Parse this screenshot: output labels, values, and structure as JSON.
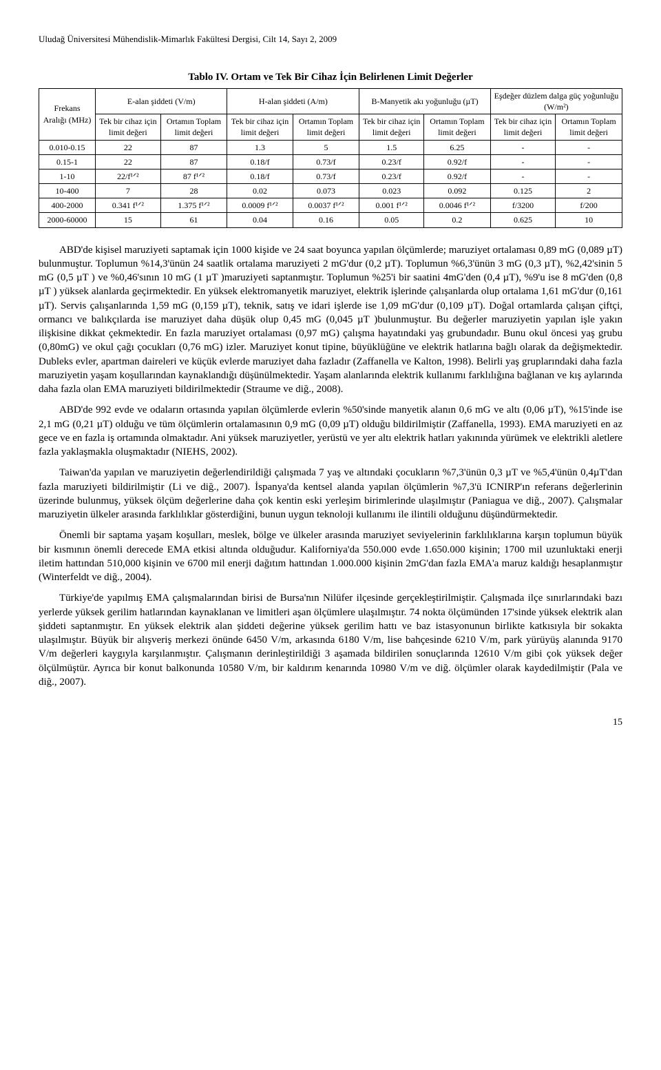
{
  "running_head": "Uludağ Üniversitesi Mühendislik-Mimarlık Fakültesi Dergisi, Cilt 14, Sayı 2, 2009",
  "table": {
    "caption": "Tablo IV. Ortam ve Tek Bir Cihaz İçin Belirlenen Limit Değerler",
    "fontsize": 12,
    "header_bg": "#ffffff",
    "border_color": "#000000",
    "group_header": {
      "col0": "Frekans Aralığı (MHz)",
      "g1": "E-alan şiddeti (V/m)",
      "g2": "H-alan şiddeti (A/m)",
      "g3": "B-Manyetik akı yoğunluğu (µT)",
      "g4": "Eşdeğer düzlem dalga güç yoğunluğu (W/m²)"
    },
    "sub_header_a": "Tek bir cihaz için limit değeri",
    "sub_header_b": "Ortamın Toplam limit değeri",
    "rows": [
      [
        "0.010-0.15",
        "22",
        "87",
        "1.3",
        "5",
        "1.5",
        "6.25",
        "-",
        "-"
      ],
      [
        "0.15-1",
        "22",
        "87",
        "0.18/f",
        "0.73/f",
        "0.23/f",
        "0.92/f",
        "-",
        "-"
      ],
      [
        "1-10",
        "22/f¹ᐟ²",
        "87 f¹ᐟ²",
        "0.18/f",
        "0.73/f",
        "0.23/f",
        "0.92/f",
        "-",
        "-"
      ],
      [
        "10-400",
        "7",
        "28",
        "0.02",
        "0.073",
        "0.023",
        "0.092",
        "0.125",
        "2"
      ],
      [
        "400-2000",
        "0.341 f¹ᐟ²",
        "1.375 f¹ᐟ²",
        "0.0009 f¹ᐟ²",
        "0.0037 f¹ᐟ²",
        "0.001 f¹ᐟ²",
        "0.0046 f¹ᐟ²",
        "f/3200",
        "f/200"
      ],
      [
        "2000-60000",
        "15",
        "61",
        "0.04",
        "0.16",
        "0.05",
        "0.2",
        "0.625",
        "10"
      ]
    ]
  },
  "paragraphs": {
    "p1": "ABD'de kişisel maruziyeti saptamak için 1000 kişide ve 24 saat boyunca yapılan ölçümlerde; maruziyet ortalaması 0,89 mG (0,089 µT) bulunmuştur. Toplumun %14,3'ünün 24 saatlik ortalama maruziyeti 2 mG'dur (0,2 µT). Toplumun %6,3'ünün 3 mG (0,3 µT), %2,42'sinin 5 mG (0,5 µT ) ve %0,46'sının 10 mG (1 µT )maruziyeti saptanmıştır. Toplumun %25'i bir saatini 4mG'den (0,4 µT), %9'u ise 8 mG'den (0,8 µT ) yüksek alanlarda geçirmektedir. En yüksek elektromanyetik maruziyet, elektrik işlerinde çalışanlarda olup ortalama 1,61 mG'dur (0,161 µT). Servis çalışanlarında 1,59 mG (0,159 µT), teknik, satış ve idari işlerde ise 1,09 mG'dur (0,109 µT). Doğal ortamlarda çalışan çiftçi, ormancı ve balıkçılarda ise maruziyet daha düşük olup 0,45 mG (0,045 µT )bulunmuştur. Bu değerler maruziyetin yapılan işle yakın ilişkisine dikkat çekmektedir. En fazla maruziyet ortalaması (0,97 mG) çalışma hayatındaki yaş grubundadır. Bunu okul öncesi yaş grubu (0,80mG) ve okul çağı çocukları (0,76 mG) izler. Maruziyet konut tipine, büyüklüğüne ve elektrik hatlarına bağlı olarak da değişmektedir. Dubleks evler, apartman daireleri ve küçük evlerde maruziyet daha fazladır (Zaffanella ve Kalton, 1998). Belirli yaş gruplarındaki daha fazla maruziyetin yaşam koşullarından kaynaklandığı düşünülmektedir. Yaşam alanlarında elektrik kullanımı farklılığına bağlanan ve kış aylarında daha fazla olan EMA maruziyeti bildirilmektedir (Straume ve diğ., 2008).",
    "p2": "ABD'de 992 evde ve odaların ortasında yapılan ölçümlerde evlerin %50'sinde manyetik alanın 0,6 mG ve altı (0,06 µT), %15'inde ise 2,1 mG (0,21 µT) olduğu ve tüm ölçümlerin ortalamasının 0,9 mG (0,09 µT) olduğu bildirilmiştir (Zaffanella, 1993). EMA maruziyeti en az gece ve en fazla iş ortamında olmaktadır. Ani yüksek maruziyetler, yerüstü ve yer altı elektrik hatları yakınında yürümek ve elektrikli aletlere fazla yaklaşmakla oluşmaktadır (NIEHS, 2002).",
    "p3": "Taiwan'da yapılan ve maruziyetin değerlendirildiği çalışmada 7 yaş ve altındaki çocukların %7,3'ünün 0,3 µT ve %5,4'ünün 0,4µT'dan fazla maruziyeti bildirilmiştir (Li ve diğ., 2007). İspanya'da kentsel alanda yapılan ölçümlerin %7,3'ü ICNIRP'ın referans değerlerinin üzerinde bulunmuş, yüksek ölçüm değerlerine daha çok kentin eski yerleşim birimlerinde ulaşılmıştır (Paniagua ve diğ., 2007). Çalışmalar maruziyetin ülkeler arasında farklılıklar gösterdiğini, bunun uygun teknoloji kullanımı ile ilintili olduğunu düşündürmektedir.",
    "p4": "Önemli bir saptama yaşam koşulları, meslek, bölge ve ülkeler arasında maruziyet seviyelerinin farklılıklarına karşın toplumun büyük bir kısmının önemli derecede EMA etkisi altında olduğudur. Kaliforniya'da 550.000 evde 1.650.000 kişinin; 1700 mil uzunluktaki enerji iletim hattından 510,000 kişinin ve 6700 mil enerji dağıtım hattından 1.000.000 kişinin 2mG'dan fazla EMA'a maruz kaldığı hesaplanmıştır (Winterfeldt ve diğ., 2004).",
    "p5": "Türkiye'de yapılmış EMA çalışmalarından birisi de Bursa'nın Nilüfer ilçesinde gerçekleştirilmiştir. Çalışmada ilçe sınırlarındaki bazı yerlerde yüksek gerilim hatlarından kaynaklanan ve limitleri aşan ölçümlere ulaşılmıştır. 74 nokta ölçümünden 17'sinde yüksek elektrik alan şiddeti saptanmıştır. En yüksek elektrik alan şiddeti değerine yüksek gerilim hattı ve baz istasyonunun birlikte katkısıyla bir sokakta ulaşılmıştır. Büyük bir alışveriş merkezi önünde 6450 V/m, arkasında 6180 V/m, lise bahçesinde 6210 V/m, park yürüyüş alanında 9170 V/m değerleri kaygıyla karşılanmıştır. Çalışmanın derinleştirildiği 3 aşamada bildirilen sonuçlarında 12610 V/m gibi çok yüksek değer ölçülmüştür. Ayrıca bir konut balkonunda 10580 V/m, bir kaldırım kenarında 10980 V/m ve diğ. ölçümler olarak kaydedilmiştir (Pala ve diğ., 2007)."
  },
  "page_number": "15"
}
